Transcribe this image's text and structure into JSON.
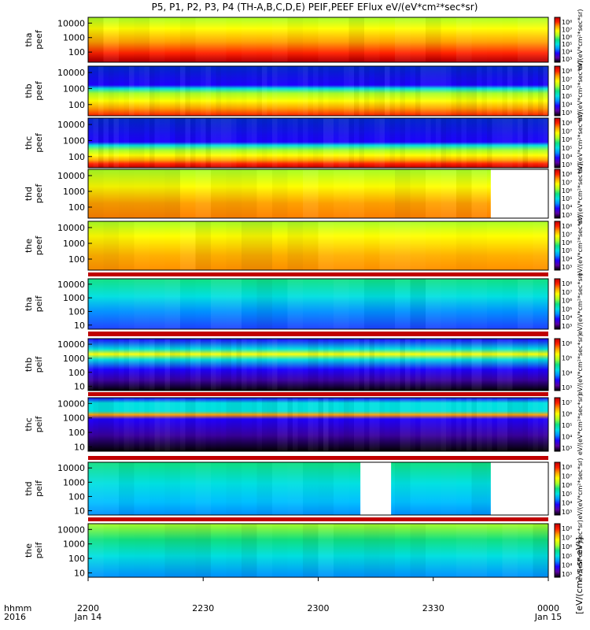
{
  "chart_data": {
    "type": "heatmap",
    "title": "P5, P1, P2, P3, P4 (TH-A,B,C,D,E) PEIF,PEEF EFlux eV/(eV*cm²*sec*sr)",
    "x_axis": {
      "row_label_1": "hhmm",
      "row_label_2": "2016",
      "ticks": [
        {
          "hhmm": "2200",
          "date": "Jan 14"
        },
        {
          "hhmm": "2230",
          "date": ""
        },
        {
          "hhmm": "2300",
          "date": ""
        },
        {
          "hhmm": "2330",
          "date": ""
        },
        {
          "hhmm": "0000",
          "date": "Jan 15"
        }
      ],
      "range_hhmm": [
        "2200",
        "0000"
      ]
    },
    "colorbar_label": "[eV/(cm²-s-sr-eV)]",
    "colorbar_range": [
      1000,
      100000000
    ],
    "panels": [
      {
        "probe": "tha",
        "product": "peef",
        "yticks": [
          "10000",
          "1000",
          "100"
        ],
        "cb_ticks": [
          "10⁸",
          "10⁷",
          "10⁶",
          "10⁵",
          "10⁴",
          "10³"
        ],
        "cb_label": "eV/(eV*cm²*sec*sr)"
      },
      {
        "probe": "thb",
        "product": "peef",
        "yticks": [
          "10000",
          "1000",
          "100"
        ],
        "cb_ticks": [
          "10⁸",
          "10⁷",
          "10⁶",
          "10⁵",
          "10⁴",
          "10³"
        ],
        "cb_label": "eV/(eV*cm²*sec*sr)"
      },
      {
        "probe": "thc",
        "product": "peef",
        "yticks": [
          "10000",
          "1000",
          "100"
        ],
        "cb_ticks": [
          "10⁸",
          "10⁷",
          "10⁶",
          "10⁵",
          "10⁴",
          "10³"
        ],
        "cb_label": "eV/(eV*cm²*sec*sr)"
      },
      {
        "probe": "thd",
        "product": "peef",
        "yticks": [
          "10000",
          "1000",
          "100"
        ],
        "cb_ticks": [
          "10⁸",
          "10⁷",
          "10⁶",
          "10⁵",
          "10⁴",
          "10³"
        ],
        "cb_label": "eV/(eV*cm²*sec*sr)"
      },
      {
        "probe": "the",
        "product": "peef",
        "yticks": [
          "10000",
          "1000",
          "100"
        ],
        "cb_ticks": [
          "10⁸",
          "10⁷",
          "10⁶",
          "10⁵",
          "10⁴",
          "10³"
        ],
        "cb_label": "eV/(eV*cm²*sec*sr)"
      },
      {
        "probe": "tha",
        "product": "peif",
        "yticks": [
          "10000",
          "1000",
          "100",
          "10"
        ],
        "cb_ticks": [
          "10⁸",
          "10⁷",
          "10⁶",
          "10⁵",
          "10⁴",
          "10³"
        ],
        "cb_label": "eV/(eV*cm²*sec*sr)"
      },
      {
        "probe": "thb",
        "product": "peif",
        "yticks": [
          "10000",
          "1000",
          "100",
          "10"
        ],
        "cb_ticks": [
          "10⁶",
          "10⁵",
          "10⁴",
          "10³"
        ],
        "cb_label": "eV/(eV*cm²*sec*sr)"
      },
      {
        "probe": "thc",
        "product": "peif",
        "yticks": [
          "10000",
          "1000",
          "100",
          "10"
        ],
        "cb_ticks": [
          "10⁷",
          "10⁶",
          "10⁵",
          "10⁴",
          "10³"
        ],
        "cb_label": "eV/(eV*cm²*sec*sr)"
      },
      {
        "probe": "thd",
        "product": "peif",
        "yticks": [
          "10000",
          "1000",
          "100",
          "10"
        ],
        "cb_ticks": [
          "10⁸",
          "10⁷",
          "10⁶",
          "10⁵",
          "10⁴",
          "10³"
        ],
        "cb_label": "eV/(eV*cm²*sec*sr)"
      },
      {
        "probe": "the",
        "product": "peif",
        "yticks": [
          "10000",
          "1000",
          "100",
          "10"
        ],
        "cb_ticks": [
          "10⁸",
          "10⁷",
          "10⁶",
          "10⁵",
          "10⁴",
          "10³"
        ],
        "cb_label": "eV/(eV*cm²*sec*sr)"
      }
    ],
    "data_gaps": [
      {
        "probe": "thd",
        "product": "peef",
        "from_hhmm": "2345",
        "to_hhmm": "0000"
      },
      {
        "probe": "thd",
        "product": "peif",
        "from_hhmm": "2311",
        "to_hhmm": "2319"
      },
      {
        "probe": "thd",
        "product": "peif",
        "from_hhmm": "2345",
        "to_hhmm": "0000"
      }
    ],
    "colormap": [
      "#000000",
      "#5a00a0",
      "#1e00ff",
      "#0090ff",
      "#00e0e0",
      "#10e080",
      "#a8ff28",
      "#ffff00",
      "#ffa000",
      "#ff2000",
      "#c00000"
    ]
  }
}
